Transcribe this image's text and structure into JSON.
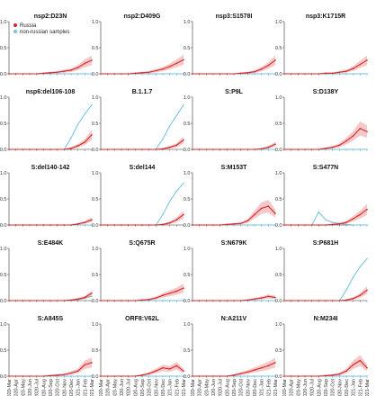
{
  "chart_data": {
    "type": "line",
    "x_months": [
      "2020-Mar",
      "2020-Apr",
      "2020-May",
      "2020-Jun",
      "2020-Jul",
      "2020-Aug",
      "2020-Sep",
      "2020-Oct",
      "2020-Nov",
      "2020-Dec",
      "2021-Jan",
      "2021-Feb",
      "2021-Mar"
    ],
    "y_ticks": [
      "0.0",
      "0.5",
      "1.0"
    ],
    "ylim": [
      0,
      1.0
    ],
    "grid": false,
    "legend": {
      "placement": "top-left of first panel",
      "entries": [
        {
          "name": "Russia",
          "color": "#d62728"
        },
        {
          "name": "non-russian samples",
          "color": "#6fc3e0"
        }
      ]
    },
    "panels": [
      {
        "title": "nsp2:D23N",
        "russia": [
          0,
          0,
          0,
          0,
          0,
          0.01,
          0.02,
          0.03,
          0.05,
          0.07,
          0.12,
          0.2,
          0.26
        ],
        "non_russian": [
          0,
          0,
          0,
          0,
          0,
          0,
          0,
          0,
          0,
          0,
          0,
          0,
          0
        ]
      },
      {
        "title": "nsp2:D409G",
        "russia": [
          0,
          0,
          0,
          0,
          0,
          0.01,
          0.02,
          0.03,
          0.06,
          0.09,
          0.14,
          0.2,
          0.27
        ],
        "non_russian": [
          0,
          0,
          0,
          0,
          0,
          0,
          0,
          0,
          0,
          0,
          0,
          0,
          0
        ]
      },
      {
        "title": "nsp3:S1578I",
        "russia": [
          0,
          0,
          0,
          0,
          0,
          0,
          0,
          0.01,
          0.02,
          0.04,
          0.09,
          0.16,
          0.26
        ],
        "non_russian": [
          0,
          0,
          0,
          0,
          0,
          0,
          0,
          0,
          0,
          0,
          0,
          0,
          0
        ]
      },
      {
        "title": "nsp3:K1715R",
        "russia": [
          0,
          0,
          0,
          0,
          0,
          0,
          0.01,
          0.01,
          0.03,
          0.05,
          0.1,
          0.18,
          0.26
        ],
        "non_russian": [
          0,
          0,
          0,
          0,
          0,
          0,
          0,
          0,
          0,
          0,
          0,
          0,
          0
        ]
      },
      {
        "title": "nsp6:del106-108",
        "russia": [
          0,
          0,
          0,
          0,
          0,
          0,
          0,
          0,
          0,
          0.02,
          0.07,
          0.14,
          0.28
        ],
        "non_russian": [
          0,
          0,
          0,
          0,
          0,
          0,
          0,
          0,
          0,
          0.22,
          0.48,
          0.68,
          0.85
        ]
      },
      {
        "title": "B.1.1.7",
        "russia": [
          0,
          0,
          0,
          0,
          0,
          0,
          0,
          0,
          0,
          0.01,
          0.04,
          0.08,
          0.18
        ],
        "non_russian": [
          0,
          0,
          0,
          0,
          0,
          0,
          0,
          0,
          0,
          0.2,
          0.45,
          0.65,
          0.85
        ]
      },
      {
        "title": "S:P9L",
        "russia": [
          0,
          0,
          0,
          0,
          0,
          0,
          0,
          0,
          0,
          0,
          0.01,
          0.04,
          0.1
        ],
        "non_russian": [
          0,
          0,
          0,
          0,
          0,
          0,
          0,
          0,
          0,
          0,
          0,
          0,
          0
        ]
      },
      {
        "title": "S:D138Y",
        "russia": [
          0,
          0,
          0,
          0,
          0,
          0,
          0.02,
          0.04,
          0.08,
          0.16,
          0.26,
          0.4,
          0.34
        ],
        "non_russian": [
          0,
          0,
          0,
          0,
          0,
          0,
          0,
          0,
          0,
          0,
          0,
          0,
          0
        ]
      },
      {
        "title": "S:del140-142",
        "russia": [
          0,
          0,
          0,
          0,
          0,
          0,
          0,
          0,
          0,
          0,
          0.02,
          0.05,
          0.1
        ],
        "non_russian": [
          0,
          0,
          0,
          0,
          0,
          0,
          0,
          0,
          0,
          0,
          0,
          0,
          0
        ]
      },
      {
        "title": "S:del144",
        "russia": [
          0,
          0,
          0,
          0,
          0,
          0,
          0,
          0,
          0,
          0.01,
          0.04,
          0.1,
          0.2
        ],
        "non_russian": [
          0,
          0,
          0,
          0,
          0,
          0,
          0,
          0,
          0,
          0.2,
          0.45,
          0.65,
          0.8
        ]
      },
      {
        "title": "S:M153T",
        "russia": [
          0,
          0,
          0,
          0,
          0,
          0.01,
          0.02,
          0.03,
          0.08,
          0.2,
          0.32,
          0.36,
          0.22
        ],
        "non_russian": [
          0,
          0,
          0,
          0,
          0,
          0,
          0,
          0,
          0,
          0,
          0,
          0,
          0
        ]
      },
      {
        "title": "S:S477N",
        "russia": [
          0,
          0,
          0,
          0,
          0,
          0,
          0,
          0.01,
          0.02,
          0.05,
          0.12,
          0.2,
          0.3
        ],
        "non_russian": [
          0,
          0,
          0,
          0,
          0,
          0.25,
          0.1,
          0.05,
          0.03,
          0.01,
          0,
          0,
          0
        ]
      },
      {
        "title": "S:E484K",
        "russia": [
          0,
          0,
          0,
          0,
          0,
          0,
          0,
          0,
          0,
          0.01,
          0.03,
          0.06,
          0.14
        ],
        "non_russian": [
          0,
          0,
          0,
          0,
          0,
          0,
          0,
          0,
          0,
          0.01,
          0.02,
          0.05,
          0.08
        ]
      },
      {
        "title": "S:Q675R",
        "russia": [
          0,
          0,
          0,
          0,
          0,
          0,
          0.01,
          0.02,
          0.05,
          0.1,
          0.14,
          0.18,
          0.24
        ],
        "non_russian": [
          0,
          0,
          0,
          0,
          0,
          0,
          0,
          0,
          0,
          0,
          0,
          0,
          0
        ]
      },
      {
        "title": "S:N679K",
        "russia": [
          0,
          0,
          0,
          0,
          0,
          0,
          0,
          0,
          0.01,
          0.03,
          0.05,
          0.08,
          0.06
        ],
        "non_russian": [
          0,
          0,
          0,
          0,
          0,
          0,
          0,
          0,
          0,
          0,
          0,
          0,
          0
        ]
      },
      {
        "title": "S:P681H",
        "russia": [
          0,
          0,
          0,
          0,
          0,
          0,
          0,
          0,
          0,
          0.01,
          0.04,
          0.1,
          0.2
        ],
        "non_russian": [
          0,
          0,
          0,
          0,
          0,
          0,
          0,
          0,
          0,
          0.2,
          0.45,
          0.65,
          0.8
        ]
      },
      {
        "title": "S:A845S",
        "russia": [
          0,
          0,
          0,
          0,
          0,
          0,
          0.01,
          0.02,
          0.03,
          0.06,
          0.1,
          0.22,
          0.26
        ],
        "non_russian": [
          0,
          0,
          0,
          0,
          0,
          0,
          0,
          0,
          0,
          0,
          0,
          0,
          0
        ]
      },
      {
        "title": "ORF8:V62L",
        "russia": [
          0,
          0,
          0,
          0,
          0,
          0,
          0.02,
          0.05,
          0.1,
          0.16,
          0.14,
          0.2,
          0.1
        ],
        "non_russian": [
          0,
          0,
          0,
          0,
          0,
          0,
          0,
          0,
          0,
          0,
          0,
          0,
          0
        ]
      },
      {
        "title": "N:A211V",
        "russia": [
          0,
          0,
          0,
          0,
          0,
          0,
          0.02,
          0.05,
          0.08,
          0.12,
          0.16,
          0.2,
          0.26
        ],
        "non_russian": [
          0,
          0,
          0,
          0,
          0,
          0,
          0,
          0,
          0,
          0,
          0,
          0,
          0
        ]
      },
      {
        "title": "N:M234I",
        "russia": [
          0,
          0,
          0,
          0,
          0,
          0,
          0.01,
          0.02,
          0.04,
          0.1,
          0.22,
          0.3,
          0.16
        ],
        "non_russian": [
          0,
          0,
          0,
          0,
          0,
          0,
          0,
          0,
          0,
          0,
          0,
          0,
          0
        ]
      }
    ]
  }
}
